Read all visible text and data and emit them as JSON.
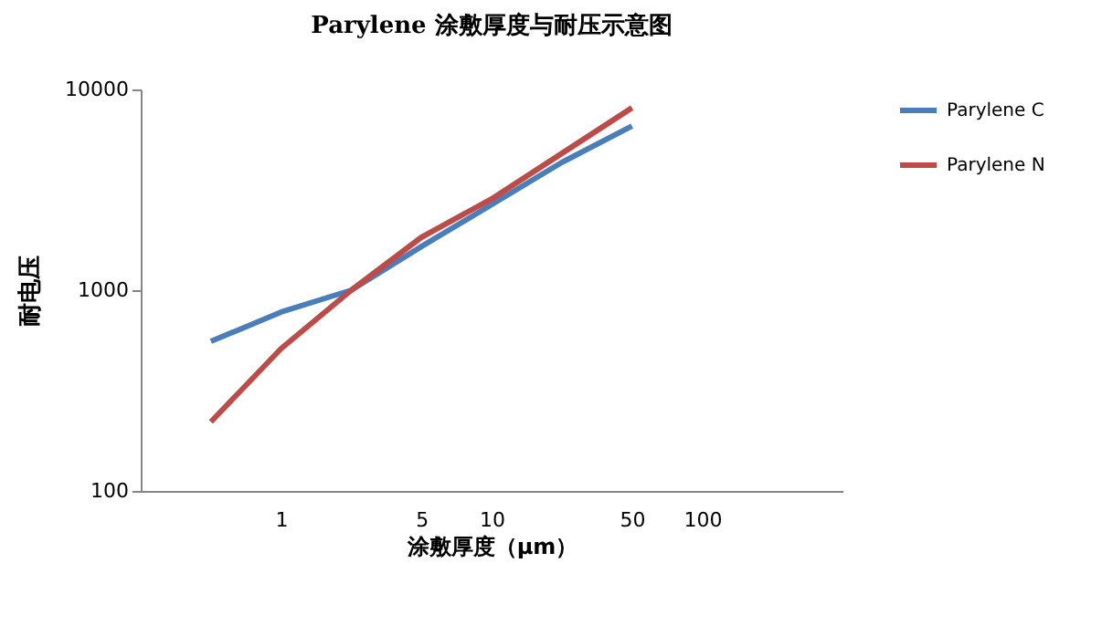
{
  "chart_data": {
    "type": "line",
    "title": "Parylene 涂敷厚度与耐压示意图",
    "xlabel": "涂敷厚度（μm）",
    "ylabel": "耐电压",
    "categories": [
      null,
      null,
      "1",
      null,
      "5",
      "10",
      null,
      "50",
      "100",
      null,
      null
    ],
    "series": [
      {
        "name": "Parylene C",
        "color": "#4a7ebb",
        "values": [
          null,
          556,
          778,
          1000,
          1650,
          2670,
          4330,
          6570,
          null,
          null,
          null
        ]
      },
      {
        "name": "Parylene N",
        "color": "#be4b48",
        "values": [
          null,
          221,
          512,
          1000,
          1835,
          2850,
          4800,
          8100,
          null,
          null,
          null
        ]
      }
    ],
    "log": "y",
    "ylim": [
      100,
      10000
    ],
    "yticks": [
      100,
      1000,
      10000
    ],
    "grid": false,
    "legend": "right",
    "marker": "none",
    "line_style": "solid"
  }
}
